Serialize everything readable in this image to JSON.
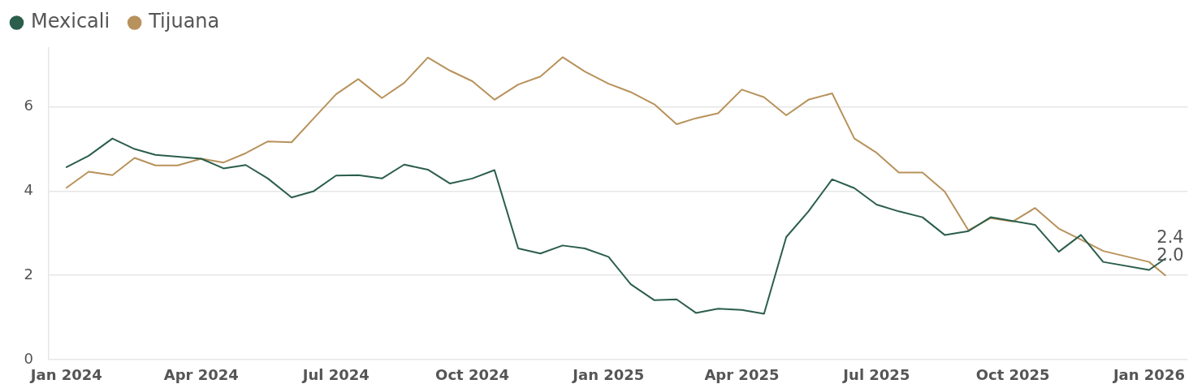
{
  "chart_data": {
    "type": "line",
    "x": [
      "2024-01-01",
      "2024-01-16",
      "2024-02-01",
      "2024-02-16",
      "2024-03-01",
      "2024-03-16",
      "2024-04-01",
      "2024-04-16",
      "2024-05-01",
      "2024-05-16",
      "2024-06-01",
      "2024-06-16",
      "2024-07-01",
      "2024-07-16",
      "2024-08-01",
      "2024-08-16",
      "2024-09-01",
      "2024-09-16",
      "2024-10-01",
      "2024-10-16",
      "2024-11-01",
      "2024-11-16",
      "2024-12-01",
      "2024-12-16",
      "2025-01-01",
      "2025-01-16",
      "2025-02-01",
      "2025-02-16",
      "2025-03-01",
      "2025-03-16",
      "2025-04-01",
      "2025-04-16",
      "2025-05-01",
      "2025-05-16",
      "2025-06-01",
      "2025-06-16",
      "2025-07-01",
      "2025-07-16",
      "2025-08-01",
      "2025-08-16",
      "2025-09-01",
      "2025-09-16",
      "2025-10-01",
      "2025-10-16",
      "2025-11-01",
      "2025-11-16",
      "2025-12-01",
      "2026-01-01",
      "2026-01-12"
    ],
    "series": [
      {
        "name": "Mexicali",
        "color": "#2b5e4b",
        "values": [
          4.57,
          4.84,
          5.25,
          5.0,
          4.86,
          4.82,
          4.77,
          4.54,
          4.62,
          4.3,
          3.85,
          4.0,
          4.37,
          4.38,
          4.3,
          4.63,
          4.51,
          4.18,
          4.3,
          4.5,
          2.64,
          2.52,
          2.71,
          2.64,
          2.44,
          1.79,
          1.41,
          1.43,
          1.11,
          1.21,
          1.18,
          1.09,
          2.91,
          3.52,
          4.28,
          4.07,
          3.68,
          3.52,
          3.38,
          2.96,
          3.05,
          3.38,
          3.29,
          3.2,
          2.56,
          2.96,
          2.32,
          2.13,
          2.4
        ],
        "value_labels": [
          null,
          null,
          null,
          null,
          null,
          null,
          null,
          null,
          null,
          null,
          null,
          null,
          null,
          null,
          null,
          null,
          null,
          null,
          null,
          null,
          null,
          null,
          null,
          null,
          null,
          null,
          null,
          null,
          null,
          null,
          null,
          null,
          null,
          null,
          null,
          null,
          null,
          null,
          null,
          null,
          null,
          null,
          null,
          null,
          null,
          null,
          null,
          null,
          "2.4"
        ]
      },
      {
        "name": "Tijuana",
        "color": "#b8925c",
        "values": [
          4.08,
          4.46,
          4.38,
          4.79,
          4.61,
          4.61,
          4.77,
          4.68,
          4.9,
          5.18,
          5.16,
          5.73,
          6.3,
          6.66,
          6.21,
          6.57,
          7.17,
          6.86,
          6.61,
          6.17,
          6.53,
          6.72,
          7.18,
          6.84,
          6.55,
          6.35,
          6.06,
          5.59,
          5.73,
          5.85,
          6.41,
          6.23,
          5.8,
          6.17,
          6.32,
          5.25,
          4.91,
          4.44,
          4.44,
          3.99,
          3.07,
          3.36,
          3.28,
          3.6,
          3.11,
          2.85,
          2.58,
          2.32,
          2.0
        ],
        "value_labels": [
          null,
          null,
          null,
          null,
          null,
          null,
          null,
          null,
          null,
          null,
          null,
          null,
          null,
          null,
          null,
          null,
          null,
          null,
          null,
          null,
          null,
          null,
          null,
          null,
          null,
          null,
          null,
          null,
          null,
          null,
          null,
          null,
          null,
          null,
          null,
          null,
          null,
          null,
          null,
          null,
          null,
          null,
          null,
          null,
          null,
          null,
          null,
          null,
          "2.0"
        ]
      }
    ],
    "xlim": [
      "2023-12-20",
      "2026-01-27"
    ],
    "xticks": [
      {
        "value": "2024-01-01",
        "label": "Jan 2024"
      },
      {
        "value": "2024-04-01",
        "label": "Apr 2024"
      },
      {
        "value": "2024-07-01",
        "label": "Jul 2024"
      },
      {
        "value": "2024-10-01",
        "label": "Oct 2024"
      },
      {
        "value": "2025-01-01",
        "label": "Jan 2025"
      },
      {
        "value": "2025-04-01",
        "label": "Apr 2025"
      },
      {
        "value": "2025-07-01",
        "label": "Jul 2025"
      },
      {
        "value": "2025-10-01",
        "label": "Oct 2025"
      },
      {
        "value": "2026-01-01",
        "label": "Jan 2026"
      }
    ],
    "ylim": [
      0,
      7.4
    ],
    "yticks": [
      0,
      2,
      4,
      6
    ],
    "grid": "y",
    "legend": "top left",
    "marker": "none",
    "line_style": "solid"
  }
}
